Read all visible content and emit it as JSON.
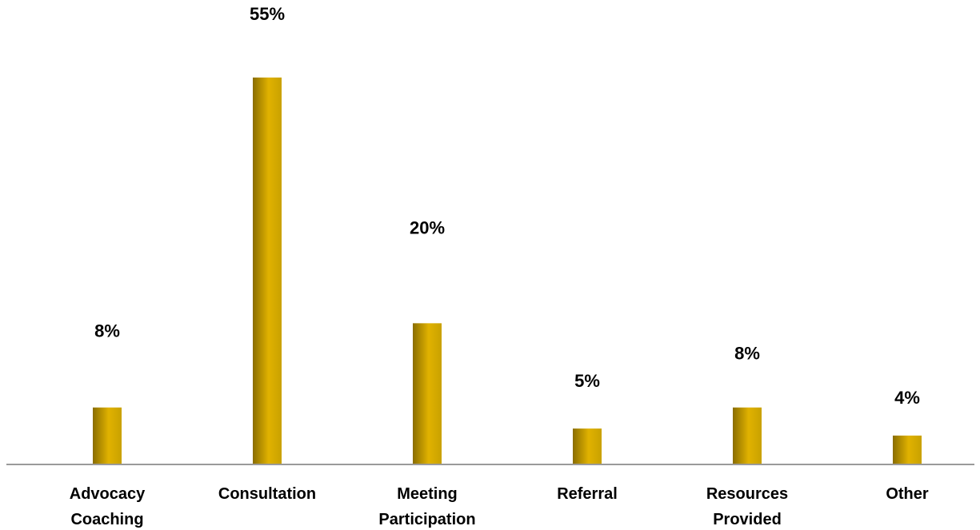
{
  "chart_data": {
    "type": "bar",
    "title": "",
    "xlabel": "",
    "ylabel": "",
    "categories": [
      [
        "Advocacy",
        "Coaching"
      ],
      [
        "Consultation"
      ],
      [
        "Meeting",
        "Participation"
      ],
      [
        "Referral"
      ],
      [
        "Resources",
        "Provided"
      ],
      [
        "Other"
      ]
    ],
    "values": [
      8,
      55,
      20,
      5,
      8,
      4
    ],
    "value_labels": [
      "8%",
      "55%",
      "20%",
      "5%",
      "8%",
      "4%"
    ],
    "unit": "%",
    "ylim": [
      0,
      55
    ],
    "grid": false,
    "legend": "none",
    "colors": {
      "bar_edge": "#8a6d00",
      "bar_mid": "#e0b200",
      "bar_light": "#c9a100",
      "axis": "#9a9a9a"
    }
  }
}
